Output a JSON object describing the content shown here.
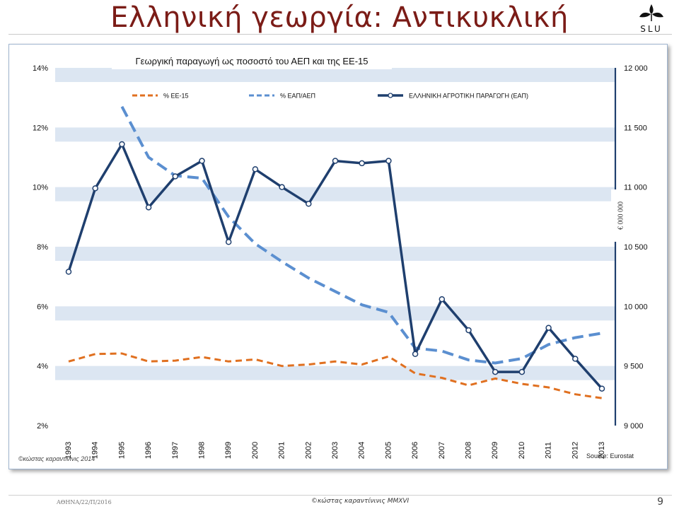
{
  "slide": {
    "title": "Ελληνική γεωργία: Αντικυκλική",
    "logo_text": "SLU",
    "footer_date": "ΑΘΗΝΑ/22/Π/2016",
    "footer_credit": "©κώστας καραντίνινις ΜΜΧVI",
    "page_number": "9"
  },
  "colors": {
    "title": "#7b1c17",
    "band": "#dce6f2",
    "series_ee15": "#e07020",
    "series_eap_aep": "#5b8fd0",
    "series_eap": "#1f3f6e"
  },
  "chart_data": {
    "type": "line",
    "title": "Γεωργική παραγωγή ως ποσοστό του ΑΕΠ και της ΕΕ-15",
    "x": [
      "1993",
      "1994",
      "1995",
      "1996",
      "1997",
      "1998",
      "1999",
      "2000",
      "2001",
      "2002",
      "2003",
      "2004",
      "2005",
      "2006",
      "2007",
      "2008",
      "2009",
      "2010",
      "2011",
      "2012",
      "2013"
    ],
    "y_left": {
      "ticks": [
        "2%",
        "4%",
        "6%",
        "8%",
        "10%",
        "12%",
        "14%"
      ],
      "range": [
        2,
        14
      ]
    },
    "y_right": {
      "label": "€ 000 000",
      "ticks": [
        "9 000",
        "9 500",
        "10 000",
        "10 500",
        "11 000",
        "11 500",
        "12 000"
      ],
      "range": [
        9000,
        12000
      ]
    },
    "grid_bands": true,
    "legend_position": "top",
    "series": [
      {
        "name": "% ΕΕ-15",
        "axis": "left",
        "style": "dashed",
        "values": [
          4.15,
          4.4,
          4.42,
          4.15,
          4.18,
          4.3,
          4.15,
          4.22,
          4.0,
          4.05,
          4.15,
          4.05,
          4.32,
          3.75,
          3.6,
          3.35,
          3.58,
          3.4,
          3.28,
          3.05,
          2.92
        ]
      },
      {
        "name": "% ΕΑΠ/ΑΕΠ",
        "axis": "left",
        "style": "dashed",
        "values": [
          null,
          null,
          12.7,
          11.0,
          10.38,
          10.3,
          9.0,
          8.1,
          7.5,
          6.95,
          6.5,
          6.05,
          5.8,
          4.6,
          4.5,
          4.2,
          4.1,
          4.25,
          4.72,
          4.95,
          5.1
        ]
      },
      {
        "name": "ΕΛΛΗΝΙΚΗ ΑΓΡΟΤΙΚΗ ΠΑΡΑΓΩΓΗ (ΕΑΠ)",
        "axis": "right",
        "style": "solid-markers",
        "values": [
          10290,
          10990,
          11360,
          10830,
          11090,
          11220,
          10540,
          11150,
          11000,
          10860,
          11220,
          11200,
          11220,
          9600,
          10060,
          9800,
          9450,
          9450,
          9820,
          9560,
          9310
        ]
      }
    ],
    "notes": {
      "copyright": "©κώστας καραντίνινις 2014",
      "source": "Source: Eurostat"
    }
  }
}
